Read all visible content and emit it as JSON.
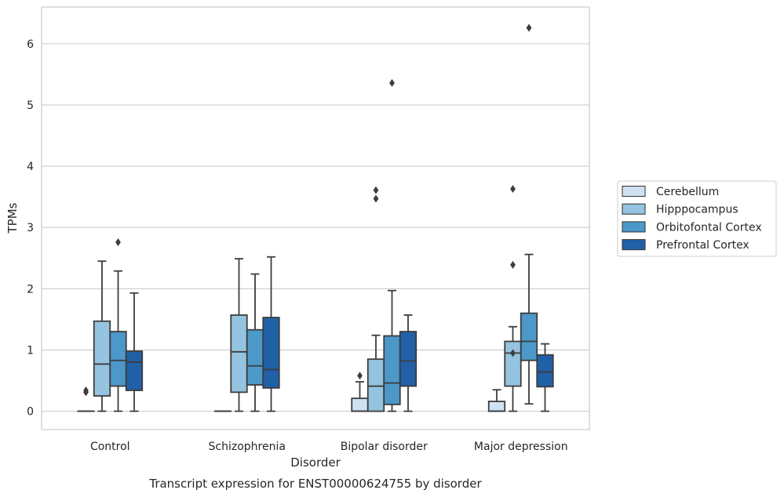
{
  "chart_data": {
    "type": "box",
    "title": "Transcript expression for ENST00000624755 by disorder",
    "xlabel": "Disorder",
    "ylabel": "TPMs",
    "ylim": [
      -0.3,
      6.6
    ],
    "yticks": [
      0,
      1,
      2,
      3,
      4,
      5,
      6
    ],
    "grid": true,
    "legend_position": "right",
    "categories": [
      "Control",
      "Schizophrenia",
      "Bipolar disorder",
      "Major depression"
    ],
    "series": [
      {
        "name": "Cerebellum",
        "color": "#d0e2f2",
        "boxes": [
          {
            "whisker_low": 0,
            "q1": 0,
            "median": 0,
            "q3": 0,
            "whisker_high": 0,
            "outliers": [
              0.31,
              0.34
            ]
          },
          {
            "whisker_low": 0,
            "q1": 0,
            "median": 0,
            "q3": 0,
            "whisker_high": 0,
            "outliers": []
          },
          {
            "whisker_low": 0,
            "q1": 0,
            "median": 0,
            "q3": 0.21,
            "whisker_high": 0.48,
            "outliers": [
              0.58
            ]
          },
          {
            "whisker_low": 0,
            "q1": 0,
            "median": 0,
            "q3": 0.16,
            "whisker_high": 0.35,
            "outliers": []
          }
        ]
      },
      {
        "name": "Hipppocampus",
        "color": "#94c4df",
        "boxes": [
          {
            "whisker_low": 0,
            "q1": 0.25,
            "median": 0.77,
            "q3": 1.47,
            "whisker_high": 2.45,
            "outliers": []
          },
          {
            "whisker_low": 0,
            "q1": 0.31,
            "median": 0.97,
            "q3": 1.57,
            "whisker_high": 2.49,
            "outliers": []
          },
          {
            "whisker_low": 0,
            "q1": 0,
            "median": 0.41,
            "q3": 0.85,
            "whisker_high": 1.24,
            "outliers": [
              3.47,
              3.61
            ]
          },
          {
            "whisker_low": 0,
            "q1": 0.41,
            "median": 0.95,
            "q3": 1.14,
            "whisker_high": 1.38,
            "outliers": [
              0.95,
              2.39,
              3.63
            ]
          }
        ]
      },
      {
        "name": "Orbitofontal Cortex",
        "color": "#4b98c9",
        "boxes": [
          {
            "whisker_low": 0,
            "q1": 0.41,
            "median": 0.83,
            "q3": 1.3,
            "whisker_high": 2.29,
            "outliers": [
              2.76
            ]
          },
          {
            "whisker_low": 0,
            "q1": 0.43,
            "median": 0.74,
            "q3": 1.33,
            "whisker_high": 2.24,
            "outliers": []
          },
          {
            "whisker_low": 0,
            "q1": 0.11,
            "median": 0.46,
            "q3": 1.23,
            "whisker_high": 1.97,
            "outliers": [
              5.36
            ]
          },
          {
            "whisker_low": 0.12,
            "q1": 0.83,
            "median": 1.14,
            "q3": 1.6,
            "whisker_high": 2.56,
            "outliers": [
              6.26
            ]
          }
        ]
      },
      {
        "name": "Prefrontal Cortex",
        "color": "#2060a7",
        "boxes": [
          {
            "whisker_low": 0,
            "q1": 0.34,
            "median": 0.8,
            "q3": 0.98,
            "whisker_high": 1.93,
            "outliers": []
          },
          {
            "whisker_low": 0,
            "q1": 0.38,
            "median": 0.68,
            "q3": 1.53,
            "whisker_high": 2.52,
            "outliers": []
          },
          {
            "whisker_low": 0,
            "q1": 0.41,
            "median": 0.82,
            "q3": 1.3,
            "whisker_high": 1.57,
            "outliers": []
          },
          {
            "whisker_low": 0,
            "q1": 0.4,
            "median": 0.64,
            "q3": 0.92,
            "whisker_high": 1.1,
            "outliers": []
          }
        ]
      }
    ]
  }
}
